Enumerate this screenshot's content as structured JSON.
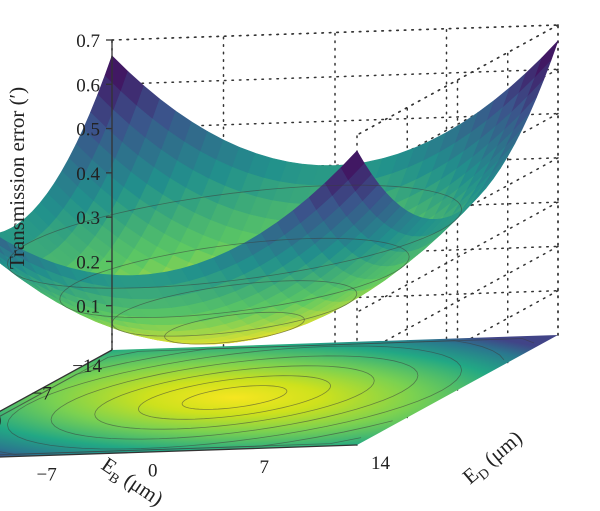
{
  "chart_data": {
    "type": "surface3d",
    "title": "",
    "zlabel": "Transmission error (′)",
    "xlabel": {
      "base": "E",
      "sub": "D",
      "unit": "μm"
    },
    "ylabel": {
      "base": "E",
      "sub": "B",
      "unit": "μm"
    },
    "xlim": [
      -14,
      14
    ],
    "ylim": [
      -14,
      14
    ],
    "zlim": [
      0.0,
      0.7
    ],
    "x_ticks": [
      -14,
      -7,
      0,
      7,
      14
    ],
    "y_ticks": [
      -14,
      -7,
      0,
      7,
      14
    ],
    "z_ticks": [
      0.1,
      0.2,
      0.3,
      0.4,
      0.5,
      0.6,
      0.7
    ],
    "surface": {
      "formula": "z = z_min + k * (x^2 + y^2)",
      "z_min": 0.135,
      "k": 0.00135,
      "z_at_corners": 0.665
    },
    "contour_projection": true,
    "colormap": [
      "#440154",
      "#3b528b",
      "#21918c",
      "#5ec962",
      "#fde725"
    ],
    "grid": true
  }
}
